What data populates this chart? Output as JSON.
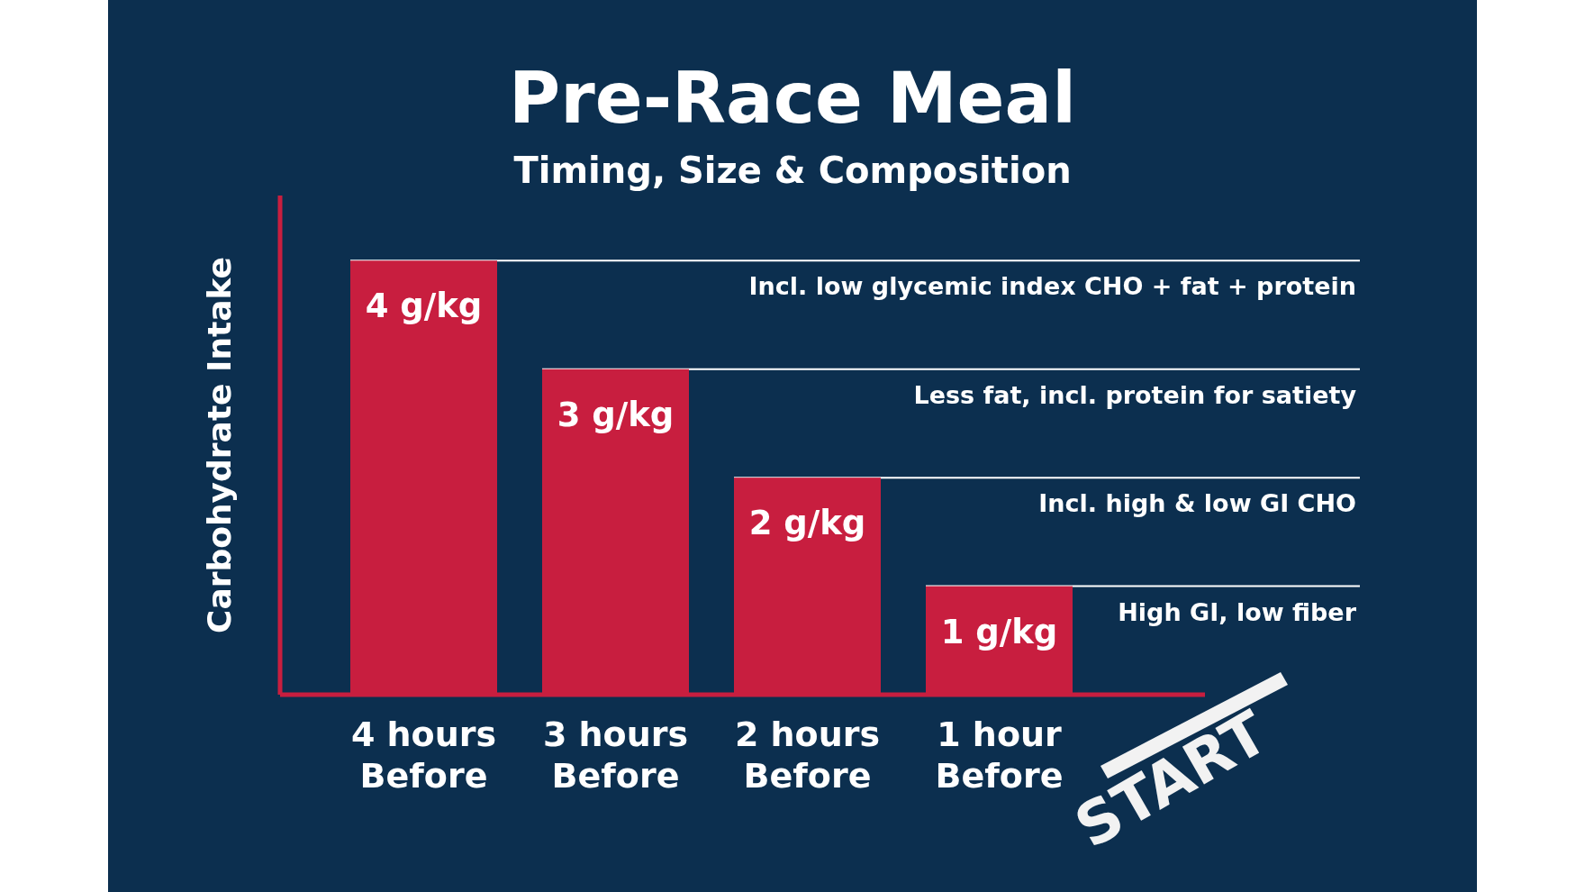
{
  "chart_data": {
    "type": "bar",
    "title": "Pre-Race Meal",
    "subtitle": "Timing, Size & Composition",
    "ylabel": "Carbohydrate Intake",
    "categories": [
      "4 hours Before",
      "3 hours Before",
      "2 hours Before",
      "1 hour Before"
    ],
    "values": [
      4,
      3,
      2,
      1
    ],
    "color": "#c81e3f",
    "ylim": [
      0,
      4.6
    ],
    "value_labels": [
      "4 g/kg",
      "3 g/kg",
      "2 g/kg",
      "1 g/kg"
    ],
    "ref_lines": [
      {
        "axis": "y",
        "value": 4,
        "label": "Incl. low glycemic index CHO + fat + protein",
        "color": "#ffffff"
      },
      {
        "axis": "y",
        "value": 3,
        "label": "Less fat, incl. protein for satiety",
        "color": "#ffffff"
      },
      {
        "axis": "y",
        "value": 2,
        "label": "Incl. high & low GI CHO",
        "color": "#ffffff"
      },
      {
        "axis": "y",
        "value": 1,
        "label": "High GI, low fiber",
        "color": "#ffffff"
      }
    ],
    "annotations": [
      "START"
    ]
  }
}
